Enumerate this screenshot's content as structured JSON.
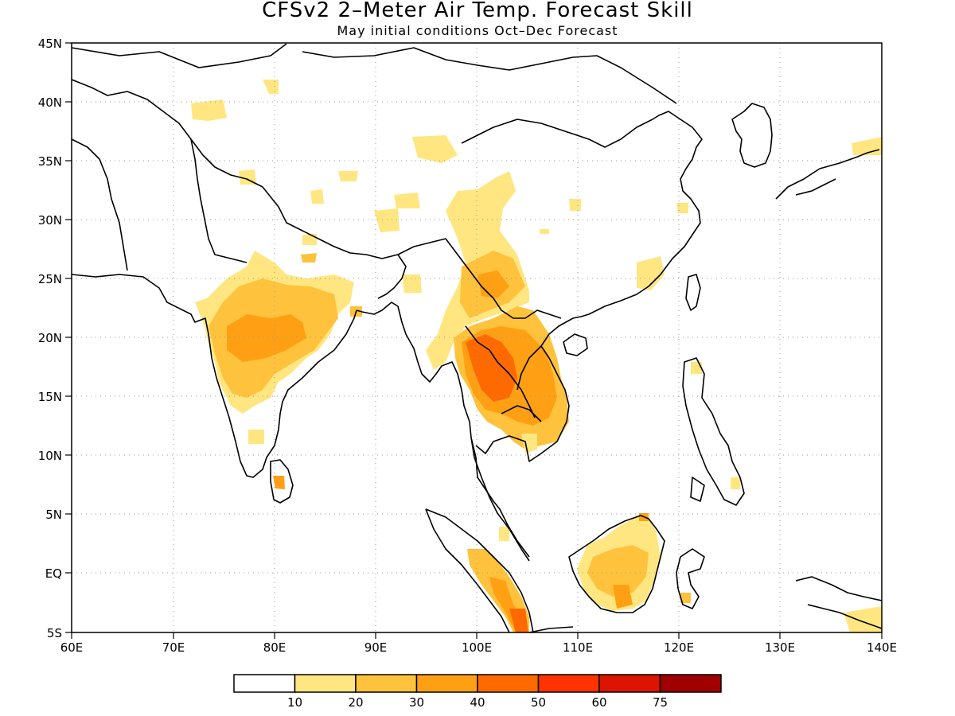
{
  "title": "CFSv2 2–Meter Air Temp. Forecast Skill",
  "subtitle": "May initial conditions  Oct–Dec Forecast",
  "map": {
    "lon_labels": [
      "60E",
      "70E",
      "80E",
      "90E",
      "100E",
      "110E",
      "120E",
      "130E",
      "140E"
    ],
    "lat_labels": [
      "45N",
      "40N",
      "35N",
      "30N",
      "25N",
      "20N",
      "15N",
      "10N",
      "5N",
      "EQ",
      "5S"
    ],
    "lon_range": [
      60,
      140
    ],
    "lat_range": [
      -5,
      45
    ],
    "grid": "dotted at 10° longitude and 5° latitude"
  },
  "colorbar": {
    "labels": [
      "10",
      "20",
      "30",
      "40",
      "50",
      "60",
      "75"
    ],
    "colors": [
      "#ffffff",
      "#ffe680",
      "#ffc23c",
      "#ffa014",
      "#ff6a00",
      "#ff3200",
      "#dc1400",
      "#a00000"
    ]
  },
  "skill_regions": [
    {
      "name": "central-india",
      "level": "20-30"
    },
    {
      "name": "thailand-laos-cambodia",
      "level": "40-50"
    },
    {
      "name": "myanmar-yunnan",
      "level": "20-30"
    },
    {
      "name": "borneo",
      "level": "20-30"
    },
    {
      "name": "sumatra",
      "level": "30-40"
    },
    {
      "name": "sri-lanka",
      "level": "30-40"
    }
  ]
}
